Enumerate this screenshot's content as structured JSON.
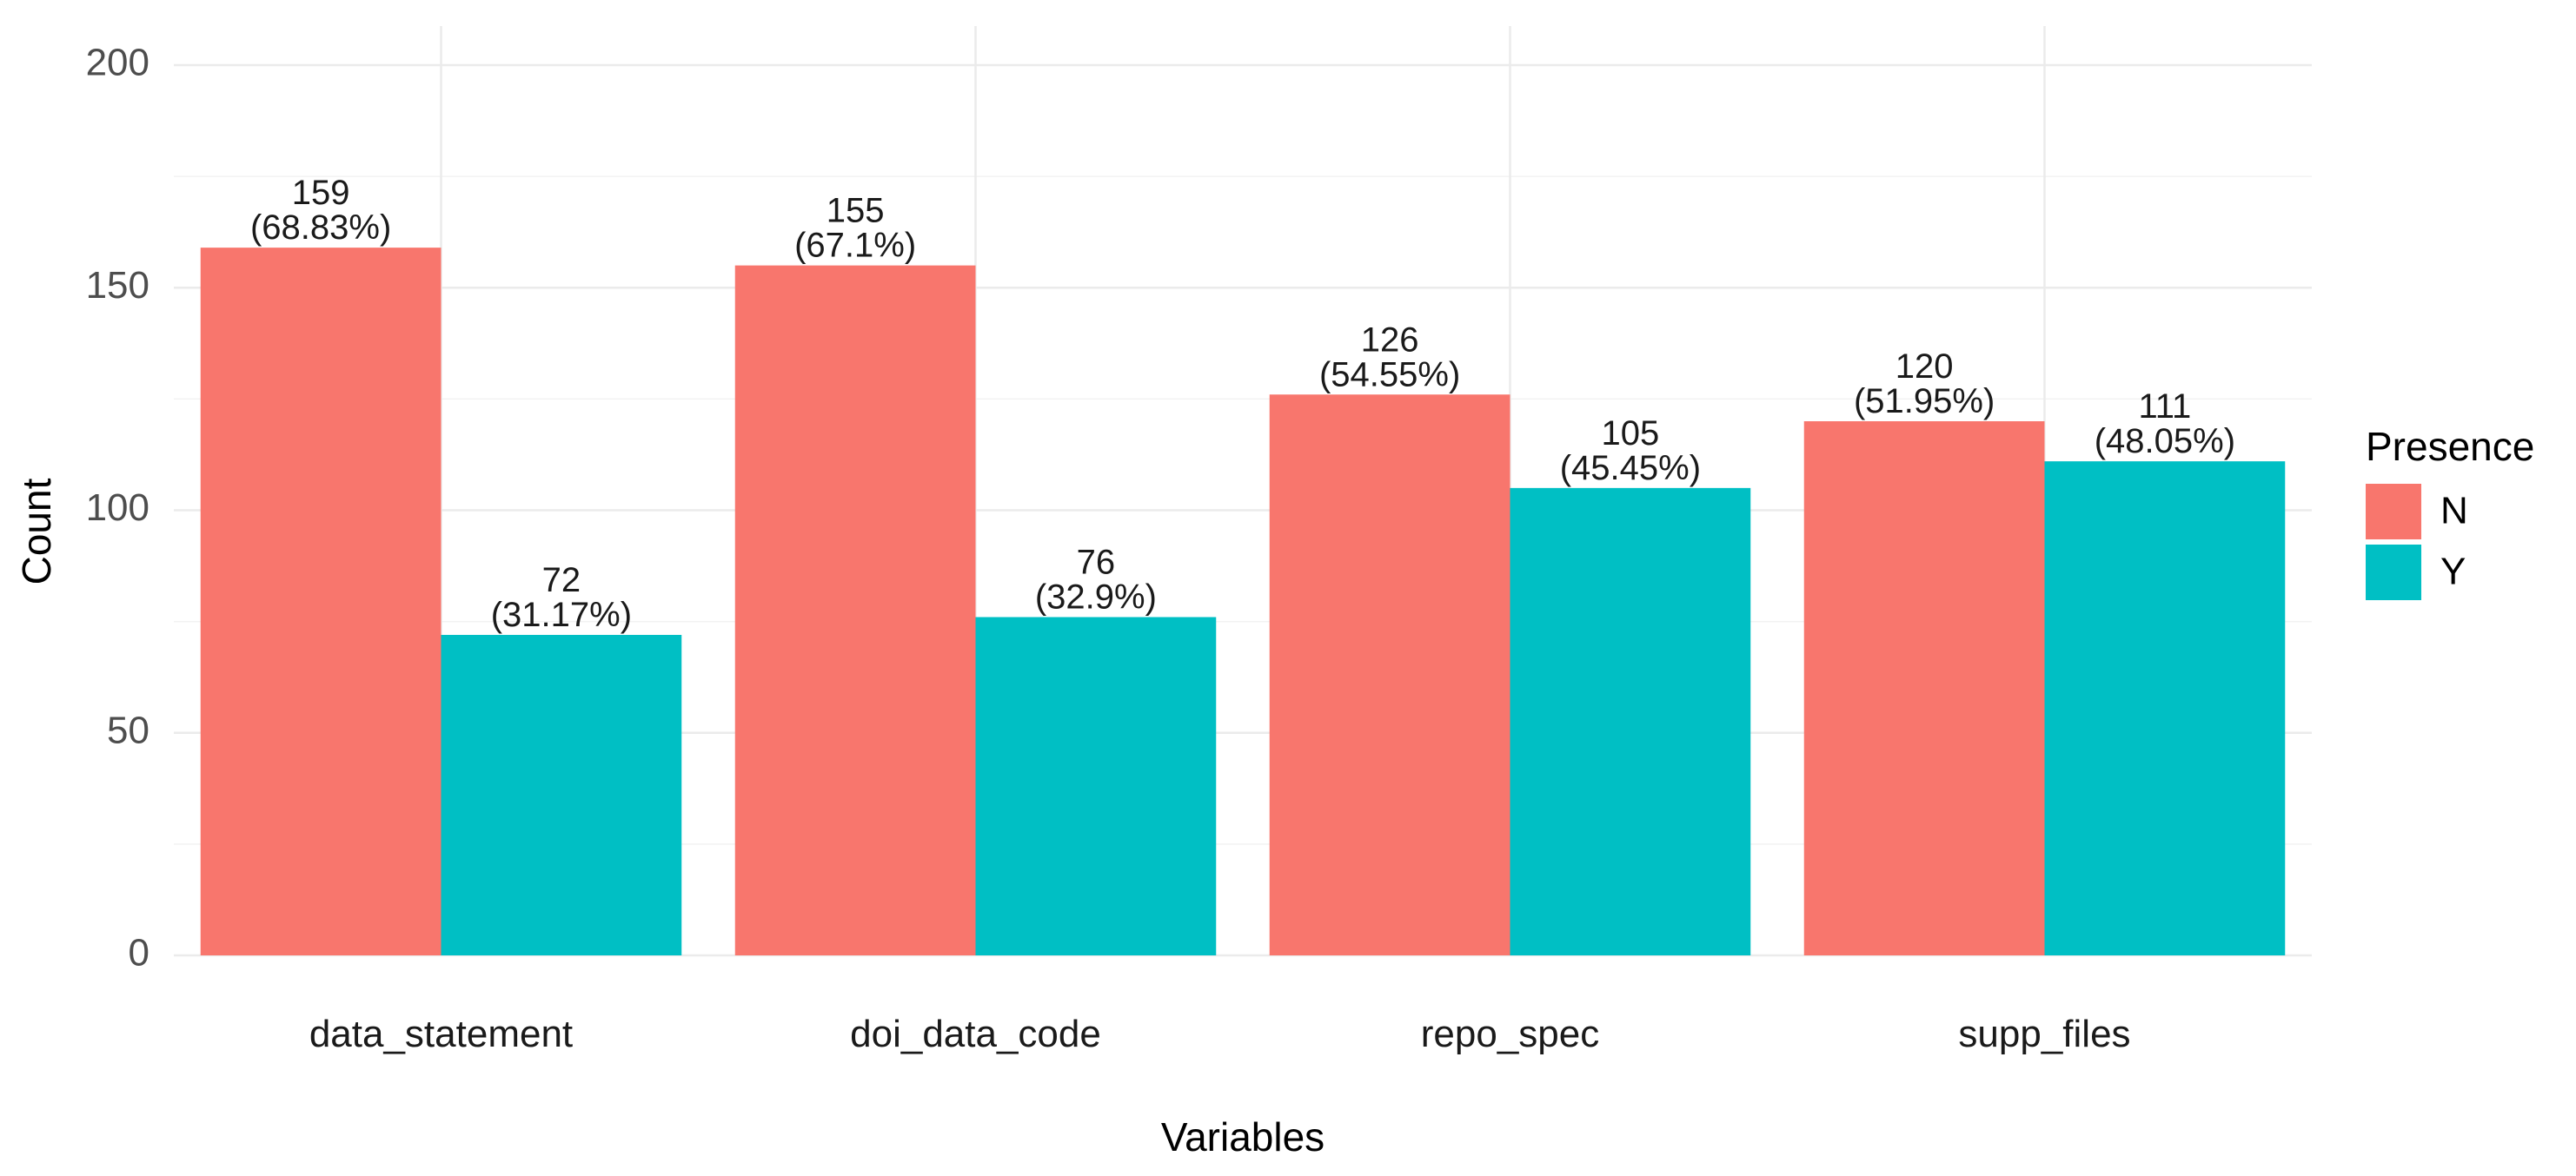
{
  "chart_data": {
    "type": "bar",
    "title": "",
    "xlabel": "Variables",
    "ylabel": "Count",
    "ylim": [
      0,
      200
    ],
    "yticks": [
      0,
      50,
      100,
      150,
      200
    ],
    "grid": true,
    "legend": {
      "title": "Presence",
      "position": "right"
    },
    "categories": [
      "data_statement",
      "doi_data_code",
      "repo_spec",
      "supp_files"
    ],
    "series": [
      {
        "name": "N",
        "color": "#F8766D",
        "values": [
          159,
          155,
          126,
          120
        ],
        "percent_labels": [
          "(68.83%)",
          "(67.1%)",
          "(54.55%)",
          "(51.95%)"
        ]
      },
      {
        "name": "Y",
        "color": "#00BFC4",
        "values": [
          72,
          76,
          105,
          111
        ],
        "percent_labels": [
          "(31.17%)",
          "(32.9%)",
          "(45.45%)",
          "(48.05%)"
        ]
      }
    ]
  }
}
